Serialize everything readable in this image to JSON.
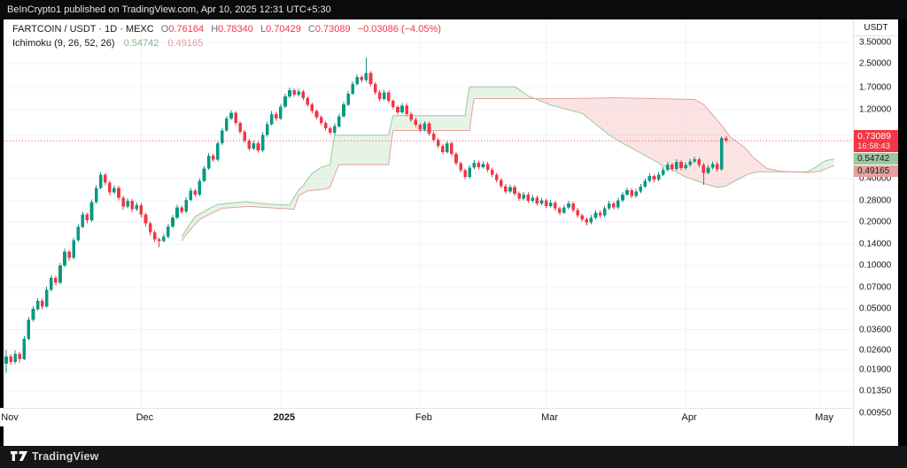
{
  "header": {
    "attribution": "BeInCrypto1 published on TradingView.com, Apr 10, 2025 12:31 UTC+5:30"
  },
  "legend": {
    "title": "FARTCOIN / USDT · 1D · MEXC",
    "o_label": "O",
    "h_label": "H",
    "l_label": "L",
    "c_label": "C",
    "ohlc": {
      "o": "0.76164",
      "h": "0.78340",
      "l": "0.70429",
      "c": "0.73089"
    },
    "change": "−0.03086 (−4.05%)",
    "indicator": {
      "name": "Ichimoku (9, 26, 52, 26)",
      "span_a": "0.54742",
      "span_b": "0.49165"
    }
  },
  "price_axis": {
    "currency": "USDT",
    "ticks": [
      3.5,
      2.5,
      1.7,
      1.2,
      0.8,
      0.4,
      0.28,
      0.2,
      0.14,
      0.1,
      0.07,
      0.05,
      0.036,
      0.026,
      0.019,
      0.0135,
      0.0095
    ]
  },
  "badges": {
    "price": {
      "value": "0.73089",
      "countdown": "16:58:43"
    },
    "span_a": "0.54742",
    "span_b": "0.49165"
  },
  "footer": {
    "brand": "TradingView"
  },
  "colors": {
    "up": "#089981",
    "down": "#f23645",
    "cloud_a_line": "#9dc79f",
    "cloud_b_line": "#e5a09d",
    "cloud_bull_fill": "rgba(165,214,167,0.28)",
    "cloud_bear_fill": "rgba(239,154,154,0.28)",
    "price_line": "#f23645",
    "grid": "#f0f3fa"
  },
  "chart_data": {
    "type": "candlestick",
    "title": "FARTCOIN / USDT 1D MEXC with Ichimoku (9, 26, 52, 26)",
    "y_axis": {
      "scale": "log",
      "unit": "USDT",
      "top_price": 3.5,
      "bottom_price": 0.0095
    },
    "x_axis": {
      "months": [
        {
          "label": "Nov",
          "i": 0
        },
        {
          "label": "Dec",
          "i": 30
        },
        {
          "label": "2025",
          "i": 61,
          "year": true
        },
        {
          "label": "Feb",
          "i": 92
        },
        {
          "label": "Mar",
          "i": 120
        },
        {
          "label": "Apr",
          "i": 151
        },
        {
          "label": "May",
          "i": 181
        }
      ]
    },
    "price_line_value": 0.73089,
    "candles": [
      [
        0.021,
        0.026,
        0.018,
        0.0235
      ],
      [
        0.0235,
        0.0245,
        0.0205,
        0.0215
      ],
      [
        0.0215,
        0.0258,
        0.0208,
        0.0245
      ],
      [
        0.0245,
        0.0252,
        0.0212,
        0.0225
      ],
      [
        0.0225,
        0.0325,
        0.0222,
        0.031
      ],
      [
        0.031,
        0.0438,
        0.0305,
        0.042
      ],
      [
        0.042,
        0.0525,
        0.0408,
        0.05
      ],
      [
        0.05,
        0.0595,
        0.0488,
        0.057
      ],
      [
        0.057,
        0.0588,
        0.0498,
        0.052
      ],
      [
        0.052,
        0.0712,
        0.0508,
        0.068
      ],
      [
        0.068,
        0.0855,
        0.0662,
        0.082
      ],
      [
        0.082,
        0.0845,
        0.0725,
        0.076
      ],
      [
        0.076,
        0.1045,
        0.0742,
        0.1
      ],
      [
        0.1,
        0.1305,
        0.0975,
        0.125
      ],
      [
        0.125,
        0.1285,
        0.1078,
        0.113
      ],
      [
        0.113,
        0.1565,
        0.1102,
        0.15
      ],
      [
        0.15,
        0.1932,
        0.1465,
        0.185
      ],
      [
        0.185,
        0.2348,
        0.1805,
        0.225
      ],
      [
        0.225,
        0.2315,
        0.1955,
        0.205
      ],
      [
        0.205,
        0.287,
        0.2,
        0.275
      ],
      [
        0.275,
        0.36,
        0.2685,
        0.345
      ],
      [
        0.345,
        0.4435,
        0.3365,
        0.425
      ],
      [
        0.425,
        0.4382,
        0.3578,
        0.375
      ],
      [
        0.375,
        0.3865,
        0.3052,
        0.32
      ],
      [
        0.32,
        0.36,
        0.3122,
        0.345
      ],
      [
        0.345,
        0.3555,
        0.2815,
        0.295
      ],
      [
        0.295,
        0.304,
        0.2432,
        0.255
      ],
      [
        0.255,
        0.2922,
        0.2488,
        0.28
      ],
      [
        0.28,
        0.2885,
        0.2338,
        0.245
      ],
      [
        0.245,
        0.2735,
        0.239,
        0.262
      ],
      [
        0.262,
        0.27,
        0.2148,
        0.225
      ],
      [
        0.225,
        0.2318,
        0.186,
        0.195
      ],
      [
        0.195,
        0.201,
        0.1622,
        0.17
      ],
      [
        0.17,
        0.1752,
        0.145,
        0.152
      ],
      [
        0.152,
        0.1565,
        0.134,
        0.148
      ],
      [
        0.148,
        0.165,
        0.1445,
        0.158
      ],
      [
        0.158,
        0.194,
        0.1542,
        0.186
      ],
      [
        0.186,
        0.2232,
        0.1815,
        0.214
      ],
      [
        0.214,
        0.263,
        0.2088,
        0.252
      ],
      [
        0.252,
        0.2595,
        0.2278,
        0.236
      ],
      [
        0.236,
        0.2975,
        0.2302,
        0.285
      ],
      [
        0.285,
        0.3445,
        0.278,
        0.33
      ],
      [
        0.33,
        0.34,
        0.2992,
        0.31
      ],
      [
        0.31,
        0.402,
        0.3025,
        0.385
      ],
      [
        0.385,
        0.4905,
        0.3755,
        0.47
      ],
      [
        0.47,
        0.6,
        0.4585,
        0.575
      ],
      [
        0.575,
        0.5925,
        0.5212,
        0.54
      ],
      [
        0.54,
        0.7305,
        0.5268,
        0.7
      ],
      [
        0.7,
        0.8975,
        0.683,
        0.86
      ],
      [
        0.86,
        1.085,
        0.839,
        1.04
      ],
      [
        1.04,
        1.19,
        1.015,
        1.14
      ],
      [
        1.14,
        1.175,
        0.9365,
        0.97
      ],
      [
        0.97,
        1.0,
        0.811,
        0.84
      ],
      [
        0.84,
        0.8655,
        0.7045,
        0.73
      ],
      [
        0.73,
        0.7525,
        0.6225,
        0.645
      ],
      [
        0.645,
        0.7305,
        0.6295,
        0.7
      ],
      [
        0.7,
        0.7215,
        0.6032,
        0.625
      ],
      [
        0.625,
        0.835,
        0.61,
        0.8
      ],
      [
        0.8,
        0.9915,
        0.78,
        0.95
      ],
      [
        0.95,
        1.17,
        0.927,
        1.12
      ],
      [
        1.12,
        1.155,
        1.004,
        1.04
      ],
      [
        1.04,
        1.315,
        1.015,
        1.26
      ],
      [
        1.26,
        1.545,
        1.229,
        1.48
      ],
      [
        1.48,
        1.7,
        1.444,
        1.63
      ],
      [
        1.63,
        1.68,
        1.467,
        1.52
      ],
      [
        1.52,
        1.67,
        1.483,
        1.6
      ],
      [
        1.6,
        1.65,
        1.39,
        1.44
      ],
      [
        1.44,
        1.485,
        1.255,
        1.3
      ],
      [
        1.3,
        1.34,
        1.129,
        1.17
      ],
      [
        1.17,
        1.206,
        1.023,
        1.06
      ],
      [
        1.06,
        1.092,
        0.936,
        0.97
      ],
      [
        0.97,
        1.0,
        0.859,
        0.89
      ],
      [
        0.89,
        0.9175,
        0.801,
        0.83
      ],
      [
        0.83,
        0.96,
        0.8012,
        0.92
      ],
      [
        0.92,
        1.127,
        0.8978,
        1.08
      ],
      [
        1.08,
        1.357,
        1.054,
        1.3
      ],
      [
        1.3,
        1.617,
        1.269,
        1.55
      ],
      [
        1.55,
        1.878,
        1.513,
        1.8
      ],
      [
        1.8,
        2.108,
        1.757,
        2.02
      ],
      [
        2.02,
        2.082,
        1.853,
        1.92
      ],
      [
        1.92,
        2.75,
        1.874,
        2.15
      ],
      [
        2.15,
        2.217,
        1.737,
        1.8
      ],
      [
        1.8,
        1.855,
        1.525,
        1.58
      ],
      [
        1.58,
        1.63,
        1.371,
        1.42
      ],
      [
        1.42,
        1.648,
        1.386,
        1.58
      ],
      [
        1.58,
        1.63,
        1.332,
        1.38
      ],
      [
        1.38,
        1.423,
        1.206,
        1.25
      ],
      [
        1.25,
        1.289,
        1.11,
        1.15
      ],
      [
        1.15,
        1.335,
        1.122,
        1.28
      ],
      [
        1.28,
        1.32,
        1.081,
        1.12
      ],
      [
        1.12,
        1.155,
        0.984,
        1.02
      ],
      [
        1.02,
        1.052,
        0.907,
        0.94
      ],
      [
        0.94,
        0.969,
        0.84,
        0.87
      ],
      [
        0.87,
        1.001,
        0.849,
        0.96
      ],
      [
        0.96,
        0.99,
        0.791,
        0.82
      ],
      [
        0.82,
        0.8455,
        0.7142,
        0.74
      ],
      [
        0.74,
        0.763,
        0.6465,
        0.67
      ],
      [
        0.67,
        0.691,
        0.5888,
        0.61
      ],
      [
        0.61,
        0.7301,
        0.595,
        0.7
      ],
      [
        0.7,
        0.7219,
        0.5694,
        0.59
      ],
      [
        0.59,
        0.6084,
        0.4922,
        0.51
      ],
      [
        0.51,
        0.526,
        0.4391,
        0.455
      ],
      [
        0.455,
        0.4692,
        0.3957,
        0.41
      ],
      [
        0.41,
        0.4953,
        0.4,
        0.475
      ],
      [
        0.475,
        0.5371,
        0.4634,
        0.515
      ],
      [
        0.515,
        0.5311,
        0.4632,
        0.48
      ],
      [
        0.48,
        0.5267,
        0.4684,
        0.505
      ],
      [
        0.505,
        0.5208,
        0.4439,
        0.46
      ],
      [
        0.46,
        0.4743,
        0.4101,
        0.425
      ],
      [
        0.425,
        0.4383,
        0.3764,
        0.39
      ],
      [
        0.39,
        0.4022,
        0.3426,
        0.355
      ],
      [
        0.355,
        0.3661,
        0.3136,
        0.325
      ],
      [
        0.325,
        0.365,
        0.317,
        0.35
      ],
      [
        0.35,
        0.361,
        0.304,
        0.315
      ],
      [
        0.315,
        0.3248,
        0.2799,
        0.29
      ],
      [
        0.29,
        0.3233,
        0.283,
        0.31
      ],
      [
        0.31,
        0.3197,
        0.2702,
        0.28
      ],
      [
        0.28,
        0.3077,
        0.2732,
        0.295
      ],
      [
        0.295,
        0.3043,
        0.2586,
        0.268
      ],
      [
        0.268,
        0.2941,
        0.2615,
        0.282
      ],
      [
        0.282,
        0.2908,
        0.249,
        0.258
      ],
      [
        0.258,
        0.2837,
        0.2518,
        0.272
      ],
      [
        0.272,
        0.2805,
        0.2394,
        0.248
      ],
      [
        0.248,
        0.2558,
        0.2239,
        0.232
      ],
      [
        0.232,
        0.2628,
        0.2264,
        0.252
      ],
      [
        0.252,
        0.2795,
        0.2459,
        0.268
      ],
      [
        0.268,
        0.2764,
        0.2335,
        0.242
      ],
      [
        0.242,
        0.2496,
        0.2142,
        0.222
      ],
      [
        0.222,
        0.229,
        0.2007,
        0.208
      ],
      [
        0.208,
        0.2145,
        0.189,
        0.198
      ],
      [
        0.198,
        0.2232,
        0.1931,
        0.214
      ],
      [
        0.214,
        0.242,
        0.2088,
        0.232
      ],
      [
        0.232,
        0.2393,
        0.2142,
        0.222
      ],
      [
        0.222,
        0.2587,
        0.2166,
        0.248
      ],
      [
        0.248,
        0.2795,
        0.242,
        0.268
      ],
      [
        0.268,
        0.2764,
        0.2432,
        0.252
      ],
      [
        0.252,
        0.2942,
        0.2459,
        0.282
      ],
      [
        0.282,
        0.3233,
        0.2752,
        0.31
      ],
      [
        0.31,
        0.3463,
        0.3025,
        0.332
      ],
      [
        0.332,
        0.3424,
        0.2914,
        0.302
      ],
      [
        0.302,
        0.339,
        0.2947,
        0.325
      ],
      [
        0.325,
        0.3671,
        0.3171,
        0.352
      ],
      [
        0.352,
        0.4015,
        0.3435,
        0.385
      ],
      [
        0.385,
        0.4329,
        0.3757,
        0.415
      ],
      [
        0.415,
        0.4277,
        0.3783,
        0.392
      ],
      [
        0.392,
        0.4433,
        0.3825,
        0.425
      ],
      [
        0.425,
        0.4777,
        0.4147,
        0.458
      ],
      [
        0.458,
        0.5215,
        0.4469,
        0.5
      ],
      [
        0.5,
        0.515,
        0.4487,
        0.465
      ],
      [
        0.465,
        0.5423,
        0.4537,
        0.52
      ],
      [
        0.52,
        0.5356,
        0.4555,
        0.472
      ],
      [
        0.472,
        0.5163,
        0.4606,
        0.495
      ],
      [
        0.495,
        0.5476,
        0.483,
        0.525
      ],
      [
        0.525,
        0.5684,
        0.5123,
        0.545
      ],
      [
        0.545,
        0.5614,
        0.4805,
        0.498
      ],
      [
        0.498,
        0.513,
        0.362,
        0.438
      ],
      [
        0.438,
        0.4954,
        0.4274,
        0.475
      ],
      [
        0.475,
        0.5267,
        0.4635,
        0.505
      ],
      [
        0.505,
        0.5202,
        0.4459,
        0.462
      ],
      [
        0.462,
        0.784,
        0.452,
        0.762
      ],
      [
        0.76164,
        0.7834,
        0.70429,
        0.73089
      ]
    ],
    "ichimoku": {
      "params": "9, 26, 52, 26",
      "senkou_a_value": 0.54742,
      "senkou_b_value": 0.49165,
      "senkou_a": [
        [
          39,
          0.157
        ],
        [
          42,
          0.218
        ],
        [
          47,
          0.265
        ],
        [
          53,
          0.276
        ],
        [
          59,
          0.265
        ],
        [
          63,
          0.262
        ],
        [
          65,
          0.334
        ],
        [
          66,
          0.357
        ],
        [
          68,
          0.434
        ],
        [
          70,
          0.478
        ],
        [
          72,
          0.499
        ],
        [
          73,
          0.8
        ],
        [
          85,
          0.8
        ],
        [
          86,
          1.09
        ],
        [
          102,
          1.09
        ],
        [
          103,
          1.73
        ],
        [
          113,
          1.73
        ],
        [
          116,
          1.49
        ],
        [
          121,
          1.29
        ],
        [
          126,
          1.17
        ],
        [
          128,
          1.13
        ],
        [
          131,
          0.95
        ],
        [
          134,
          0.8
        ],
        [
          137,
          0.7
        ],
        [
          141,
          0.6
        ],
        [
          146,
          0.49
        ],
        [
          151,
          0.41
        ],
        [
          155,
          0.37
        ],
        [
          158,
          0.347
        ],
        [
          160,
          0.355
        ],
        [
          162,
          0.385
        ],
        [
          165,
          0.43
        ],
        [
          167,
          0.445
        ],
        [
          178,
          0.445
        ],
        [
          180,
          0.48
        ],
        [
          182,
          0.53
        ],
        [
          184,
          0.547
        ]
      ],
      "senkou_b": [
        [
          39,
          0.148
        ],
        [
          43,
          0.208
        ],
        [
          48,
          0.249
        ],
        [
          54,
          0.256
        ],
        [
          64,
          0.245
        ],
        [
          65,
          0.304
        ],
        [
          67,
          0.329
        ],
        [
          71,
          0.339
        ],
        [
          72,
          0.348
        ],
        [
          74,
          0.5
        ],
        [
          85,
          0.5
        ],
        [
          86,
          0.86
        ],
        [
          103,
          0.86
        ],
        [
          104,
          1.43
        ],
        [
          126,
          1.43
        ],
        [
          135,
          1.45
        ],
        [
          153,
          1.41
        ],
        [
          155,
          1.3
        ],
        [
          157,
          1.1
        ],
        [
          159,
          0.93
        ],
        [
          161,
          0.77
        ],
        [
          164,
          0.66
        ],
        [
          166,
          0.56
        ],
        [
          169,
          0.47
        ],
        [
          172,
          0.45
        ],
        [
          178,
          0.44
        ],
        [
          181,
          0.45
        ],
        [
          184,
          0.492
        ]
      ]
    }
  }
}
